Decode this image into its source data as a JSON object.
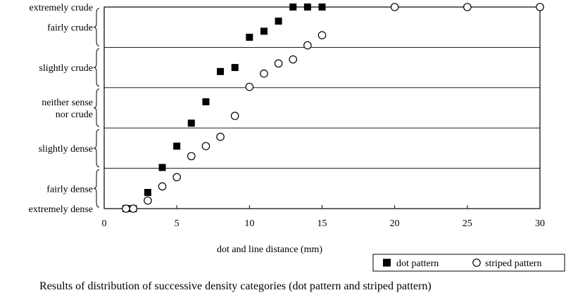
{
  "chart_data": {
    "type": "scatter",
    "title": "",
    "caption": "Results of distribution of successive density categories (dot pattern and striped pattern)",
    "xlabel": "dot and line distance (mm)",
    "ylabel": "",
    "xlim": [
      0,
      30
    ],
    "ylim": [
      0,
      5
    ],
    "x_ticks": [
      0,
      5,
      10,
      15,
      20,
      25,
      30
    ],
    "categories": [
      {
        "label": [
          "extremely dense"
        ],
        "y": 0,
        "brace": false
      },
      {
        "label": [
          "fairly dense"
        ],
        "band": [
          0,
          1
        ],
        "brace": true
      },
      {
        "label": [
          "slightly dense"
        ],
        "band": [
          1,
          2
        ],
        "brace": true
      },
      {
        "label": [
          "neither sense",
          "nor crude"
        ],
        "band": [
          2,
          3
        ],
        "brace": true
      },
      {
        "label": [
          "slightly crude"
        ],
        "band": [
          3,
          4
        ],
        "brace": true
      },
      {
        "label": [
          "fairly crude"
        ],
        "band": [
          4,
          5
        ],
        "brace": true
      },
      {
        "label": [
          "extremely crude"
        ],
        "y": 5,
        "brace": false
      }
    ],
    "gridlines_y": [
      1,
      2,
      3,
      4
    ],
    "series": [
      {
        "name": "dot pattern",
        "marker": "filled-square",
        "points": [
          [
            1.5,
            0
          ],
          [
            2,
            0
          ],
          [
            3,
            0.4
          ],
          [
            4,
            1.02
          ],
          [
            5,
            1.55
          ],
          [
            6,
            2.12
          ],
          [
            7,
            2.65
          ],
          [
            8,
            3.4
          ],
          [
            9,
            3.5
          ],
          [
            10,
            4.25
          ],
          [
            11,
            4.4
          ],
          [
            12,
            4.65
          ],
          [
            13,
            5
          ],
          [
            14,
            5
          ],
          [
            15,
            5
          ]
        ]
      },
      {
        "name": "striped pattern",
        "marker": "open-circle",
        "points": [
          [
            1.5,
            0
          ],
          [
            2,
            0
          ],
          [
            3,
            0.2
          ],
          [
            4,
            0.55
          ],
          [
            5,
            0.78
          ],
          [
            6,
            1.3
          ],
          [
            7,
            1.55
          ],
          [
            8,
            1.78
          ],
          [
            9,
            2.3
          ],
          [
            10,
            3.02
          ],
          [
            11,
            3.35
          ],
          [
            12,
            3.6
          ],
          [
            13,
            3.7
          ],
          [
            14,
            4.05
          ],
          [
            15,
            4.3
          ],
          [
            20,
            5
          ],
          [
            25,
            5
          ],
          [
            30,
            5
          ]
        ]
      }
    ],
    "legend": {
      "position": "bottom-right",
      "entries": [
        "dot pattern",
        "striped pattern"
      ]
    }
  }
}
